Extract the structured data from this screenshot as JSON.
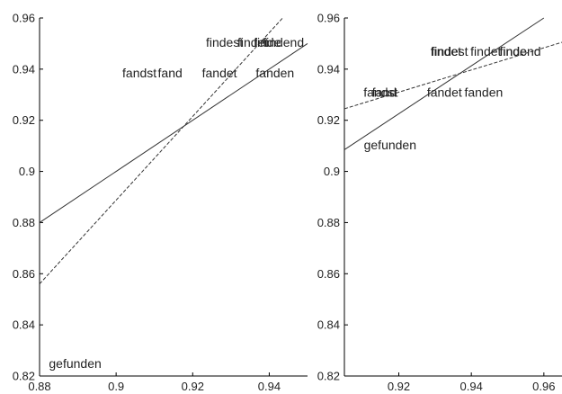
{
  "chart_data": [
    {
      "type": "scatter",
      "title": "",
      "xlabel": "",
      "ylabel": "",
      "xlim": [
        0.88,
        0.95
      ],
      "ylim": [
        0.82,
        0.96
      ],
      "xticks": [
        "0.88",
        "0.9",
        "0.92",
        "0.94"
      ],
      "yticks": [
        "0.82",
        "0.84",
        "0.86",
        "0.88",
        "0.9",
        "0.92",
        "0.94",
        "0.96"
      ],
      "grid": false,
      "lines": [
        {
          "style": "solid",
          "x": [
            0.88,
            0.95
          ],
          "y": [
            0.88,
            0.95
          ]
        },
        {
          "style": "dashed",
          "x": [
            0.88,
            0.9435
          ],
          "y": [
            0.856,
            0.96
          ]
        }
      ],
      "points": [
        {
          "label": "findest",
          "x": 0.9283,
          "y": 0.95
        },
        {
          "label": "findet",
          "x": 0.9357,
          "y": 0.95
        },
        {
          "label": "finde",
          "x": 0.9395,
          "y": 0.95
        },
        {
          "label": "findend",
          "x": 0.9437,
          "y": 0.95
        },
        {
          "label": "fandst",
          "x": 0.9061,
          "y": 0.938
        },
        {
          "label": "fand",
          "x": 0.9141,
          "y": 0.938
        },
        {
          "label": "fandet",
          "x": 0.927,
          "y": 0.938
        },
        {
          "label": "fanden",
          "x": 0.9415,
          "y": 0.938
        },
        {
          "label": "gefunden",
          "x": 0.8893,
          "y": 0.8245
        }
      ]
    },
    {
      "type": "scatter",
      "title": "",
      "xlabel": "",
      "ylabel": "",
      "xlim": [
        0.905,
        0.965
      ],
      "ylim": [
        0.82,
        0.96
      ],
      "xticks": [
        "0.92",
        "0.94",
        "0.96"
      ],
      "yticks": [
        "0.82",
        "0.84",
        "0.86",
        "0.88",
        "0.9",
        "0.92",
        "0.94",
        "0.96"
      ],
      "grid": false,
      "lines": [
        {
          "style": "solid",
          "x": [
            0.905,
            0.96
          ],
          "y": [
            0.9085,
            0.96
          ]
        },
        {
          "style": "dashed",
          "x": [
            0.905,
            0.965
          ],
          "y": [
            0.9245,
            0.9505
          ]
        }
      ],
      "points": [
        {
          "label": "findest",
          "x": 0.934,
          "y": 0.9465
        },
        {
          "label": "findet",
          "x": 0.933,
          "y": 0.9465
        },
        {
          "label": "findet",
          "x": 0.944,
          "y": 0.9465
        },
        {
          "label": "finde",
          "x": 0.9515,
          "y": 0.9465
        },
        {
          "label": "findend",
          "x": 0.9535,
          "y": 0.9465
        },
        {
          "label": "fandst",
          "x": 0.915,
          "y": 0.9305
        },
        {
          "label": "fand",
          "x": 0.916,
          "y": 0.9305
        },
        {
          "label": "fandet",
          "x": 0.9326,
          "y": 0.9305
        },
        {
          "label": "fanden",
          "x": 0.9434,
          "y": 0.9305
        },
        {
          "label": "gefunden",
          "x": 0.9176,
          "y": 0.91
        }
      ]
    }
  ]
}
